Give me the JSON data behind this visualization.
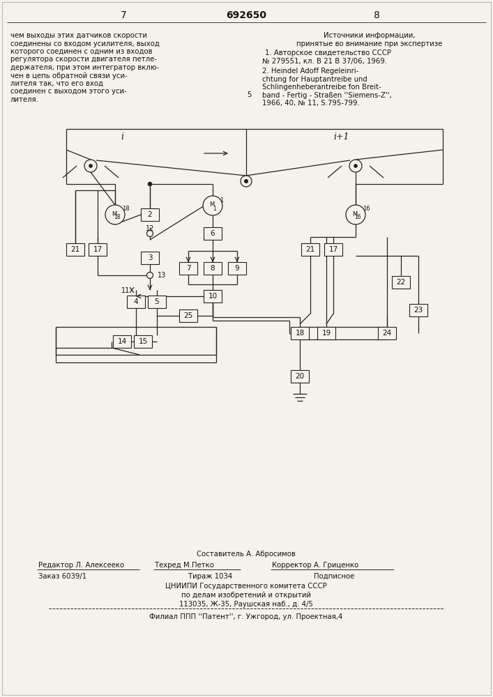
{
  "page_numbers": [
    "7",
    "8"
  ],
  "patent_number": "692650",
  "left_text_lines": [
    "чем выходы этих датчиков скорости",
    "соединены со входом усилителя, выход",
    "которого соединен с одним из входов",
    "регулятора скорости двигателя петле-",
    "держателя, при этом интегратор вклю-",
    "чен в цепь обратной связи уси-",
    "лителя так, что его вход",
    "соединен с выходом этого уси-",
    "лителя."
  ],
  "right_title_lines": [
    "Источники информации,",
    "принятые во внимание при экспертизе"
  ],
  "ref1_lines": [
    "1. Авторское свидетельство СССР",
    "№ 279551, кл. В 21 В 37/06, 1969."
  ],
  "ref2_lines": [
    "2. Heindel Adoff Regeleinri-",
    "chtung for Hauptantreibe und",
    "Schlingenheberantreibe fon Breit-",
    "band - Fertig - Straßen ''Siemens-Z'',",
    "1966, 40, № 11, S.795-799."
  ],
  "center_5": "5",
  "footer_composer": "Составитель А. Абросимов",
  "footer_editor": "Редактор Л. Алексееко",
  "footer_tech": "Техред М.Петко",
  "footer_corrector": "Корректор А. Гриценко",
  "footer_order": "Заказ 6039/1",
  "footer_print": "Тираж 1034",
  "footer_sign": "Подписное",
  "footer_org": "ЦНИИПИ Государственного комитета СССР",
  "footer_org2": "по делам изобретений и открытий",
  "footer_addr": "113035, Ж-35, Раушская наб., д. 4/5",
  "footer_branch": "Филиал ППП ''Патент'', г. Ужгород, ул. Проектная,4",
  "bg_color": "#f5f2ec",
  "line_color": "#222222",
  "text_color": "#111111"
}
